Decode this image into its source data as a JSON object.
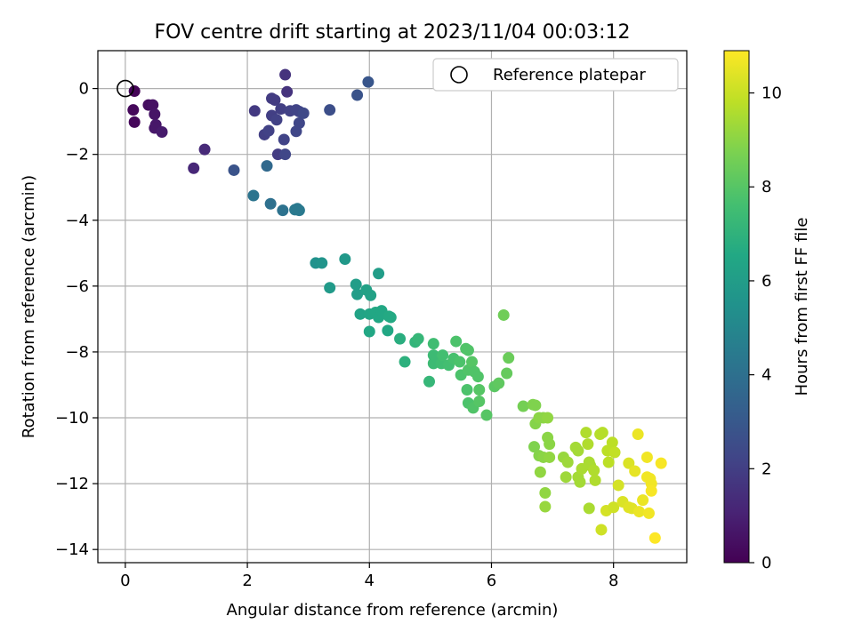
{
  "chart_data": {
    "type": "scatter",
    "title": "FOV centre drift starting at 2023/11/04 00:03:12",
    "xlabel": "Angular distance from reference (arcmin)",
    "ylabel": "Rotation from reference (arcmin)",
    "xlim": [
      -0.45,
      9.2
    ],
    "ylim": [
      -14.4,
      1.15
    ],
    "xticks": [
      0,
      2,
      4,
      6,
      8
    ],
    "yticks": [
      0,
      -2,
      -4,
      -6,
      -8,
      -10,
      -12,
      -14
    ],
    "xtick_labels": [
      "0",
      "2",
      "4",
      "6",
      "8"
    ],
    "ytick_labels": [
      "0",
      "−2",
      "−4",
      "−6",
      "−8",
      "−10",
      "−12",
      "−14"
    ],
    "grid": true,
    "legend": {
      "label": "Reference platepar",
      "position": "top-right"
    },
    "reference": {
      "x": 0,
      "y": 0
    },
    "colorbar": {
      "label": "Hours from first FF file",
      "min": 0,
      "max": 10.9,
      "ticks": [
        0,
        2,
        4,
        6,
        8,
        10
      ],
      "tick_labels": [
        "0",
        "2",
        "4",
        "6",
        "8",
        "10"
      ],
      "colormap": "viridis"
    },
    "points": [
      [
        0.15,
        -0.08,
        0.1
      ],
      [
        0.13,
        -0.65,
        0.2
      ],
      [
        0.15,
        -1.02,
        0.2
      ],
      [
        0.38,
        -0.5,
        0.4
      ],
      [
        0.45,
        -0.5,
        0.5
      ],
      [
        0.48,
        -0.78,
        0.6
      ],
      [
        0.5,
        -1.1,
        0.7
      ],
      [
        0.48,
        -1.2,
        0.7
      ],
      [
        0.6,
        -1.32,
        0.8
      ],
      [
        1.12,
        -2.42,
        1.2
      ],
      [
        1.3,
        -1.85,
        1.3
      ],
      [
        1.78,
        -2.48,
        2.8
      ],
      [
        2.12,
        -0.68,
        1.8
      ],
      [
        2.28,
        -1.4,
        2.0
      ],
      [
        2.35,
        -1.28,
        2.1
      ],
      [
        2.4,
        -0.3,
        1.9
      ],
      [
        2.45,
        -0.35,
        1.9
      ],
      [
        2.4,
        -0.82,
        2.0
      ],
      [
        2.48,
        -0.95,
        2.1
      ],
      [
        2.5,
        -2.0,
        1.9
      ],
      [
        2.55,
        -0.62,
        2.0
      ],
      [
        2.6,
        -1.55,
        2.2
      ],
      [
        2.62,
        -2.0,
        2.3
      ],
      [
        2.62,
        0.42,
        1.6
      ],
      [
        2.65,
        -0.1,
        1.6
      ],
      [
        2.7,
        -0.68,
        2.1
      ],
      [
        2.8,
        -0.65,
        2.2
      ],
      [
        2.85,
        -0.7,
        2.2
      ],
      [
        2.85,
        -1.05,
        2.3
      ],
      [
        2.8,
        -1.3,
        2.3
      ],
      [
        2.92,
        -0.75,
        2.4
      ],
      [
        3.35,
        -0.65,
        2.6
      ],
      [
        3.8,
        -0.2,
        2.8
      ],
      [
        3.98,
        0.2,
        2.9
      ],
      [
        2.32,
        -2.35,
        3.7
      ],
      [
        2.1,
        -3.25,
        4.2
      ],
      [
        2.38,
        -3.5,
        4.0
      ],
      [
        2.58,
        -3.7,
        4.1
      ],
      [
        2.78,
        -3.68,
        4.4
      ],
      [
        2.82,
        -3.65,
        4.4
      ],
      [
        2.85,
        -3.7,
        4.4
      ],
      [
        3.12,
        -5.3,
        5.5
      ],
      [
        3.22,
        -5.3,
        5.6
      ],
      [
        3.6,
        -5.18,
        5.8
      ],
      [
        3.35,
        -6.05,
        5.9
      ],
      [
        3.78,
        -5.95,
        6.0
      ],
      [
        3.8,
        -6.25,
        6.0
      ],
      [
        3.95,
        -6.12,
        6.2
      ],
      [
        4.02,
        -6.28,
        6.2
      ],
      [
        3.85,
        -6.85,
        6.3
      ],
      [
        4.0,
        -6.85,
        6.4
      ],
      [
        4.1,
        -6.8,
        6.5
      ],
      [
        4.15,
        -6.95,
        6.5
      ],
      [
        4.2,
        -6.75,
        6.5
      ],
      [
        4.32,
        -6.92,
        6.6
      ],
      [
        4.35,
        -6.95,
        6.6
      ],
      [
        4.15,
        -5.62,
        6.0
      ],
      [
        4.0,
        -7.38,
        6.5
      ],
      [
        4.3,
        -7.35,
        6.5
      ],
      [
        4.5,
        -7.6,
        6.8
      ],
      [
        4.58,
        -8.3,
        6.9
      ],
      [
        4.75,
        -7.7,
        7.1
      ],
      [
        4.8,
        -7.6,
        7.2
      ],
      [
        4.98,
        -8.9,
        7.2
      ],
      [
        5.05,
        -7.75,
        7.5
      ],
      [
        5.05,
        -8.1,
        7.4
      ],
      [
        5.05,
        -8.35,
        7.4
      ],
      [
        5.12,
        -8.2,
        7.4
      ],
      [
        5.18,
        -8.35,
        7.5
      ],
      [
        5.2,
        -8.1,
        7.6
      ],
      [
        5.3,
        -8.4,
        7.6
      ],
      [
        5.38,
        -8.2,
        7.7
      ],
      [
        5.42,
        -7.68,
        7.8
      ],
      [
        5.48,
        -8.3,
        7.8
      ],
      [
        5.5,
        -8.7,
        7.8
      ],
      [
        5.58,
        -7.9,
        7.9
      ],
      [
        5.62,
        -7.95,
        7.9
      ],
      [
        5.62,
        -8.55,
        7.9
      ],
      [
        5.68,
        -8.3,
        8.0
      ],
      [
        5.72,
        -8.6,
        7.9
      ],
      [
        5.6,
        -9.15,
        7.8
      ],
      [
        5.62,
        -9.55,
        7.8
      ],
      [
        5.7,
        -9.7,
        7.9
      ],
      [
        5.78,
        -8.75,
        7.9
      ],
      [
        5.8,
        -9.15,
        8.0
      ],
      [
        5.8,
        -9.5,
        8.0
      ],
      [
        5.92,
        -9.92,
        8.0
      ],
      [
        6.05,
        -9.05,
        8.1
      ],
      [
        6.12,
        -8.95,
        8.2
      ],
      [
        6.2,
        -6.88,
        8.5
      ],
      [
        6.25,
        -8.65,
        8.3
      ],
      [
        6.28,
        -8.18,
        8.4
      ],
      [
        6.52,
        -9.65,
        8.6
      ],
      [
        6.68,
        -9.6,
        8.8
      ],
      [
        6.72,
        -9.62,
        8.8
      ],
      [
        6.7,
        -10.88,
        8.8
      ],
      [
        6.72,
        -10.18,
        8.9
      ],
      [
        6.78,
        -10.0,
        9.0
      ],
      [
        6.85,
        -10.0,
        9.0
      ],
      [
        6.92,
        -10.0,
        9.1
      ],
      [
        6.78,
        -11.15,
        8.9
      ],
      [
        6.85,
        -11.2,
        9.0
      ],
      [
        6.8,
        -11.65,
        9.1
      ],
      [
        6.92,
        -10.6,
        9.0
      ],
      [
        6.95,
        -10.8,
        9.0
      ],
      [
        6.95,
        -11.2,
        9.1
      ],
      [
        6.88,
        -12.28,
        9.1
      ],
      [
        6.88,
        -12.7,
        9.2
      ],
      [
        7.18,
        -11.2,
        9.2
      ],
      [
        7.25,
        -11.35,
        9.3
      ],
      [
        7.22,
        -11.8,
        9.3
      ],
      [
        7.38,
        -10.9,
        9.4
      ],
      [
        7.42,
        -11.0,
        9.4
      ],
      [
        7.42,
        -11.8,
        9.4
      ],
      [
        7.45,
        -11.95,
        9.4
      ],
      [
        7.48,
        -11.55,
        9.5
      ],
      [
        7.55,
        -10.45,
        9.6
      ],
      [
        7.58,
        -10.8,
        9.6
      ],
      [
        7.6,
        -11.35,
        9.5
      ],
      [
        7.62,
        -11.45,
        9.5
      ],
      [
        7.68,
        -11.6,
        9.6
      ],
      [
        7.7,
        -11.9,
        9.6
      ],
      [
        7.6,
        -12.75,
        9.5
      ],
      [
        7.78,
        -10.5,
        9.7
      ],
      [
        7.82,
        -10.45,
        9.7
      ],
      [
        7.9,
        -11.0,
        9.8
      ],
      [
        7.92,
        -11.35,
        9.8
      ],
      [
        7.98,
        -10.75,
        9.8
      ],
      [
        8.02,
        -11.05,
        9.9
      ],
      [
        7.8,
        -13.4,
        10.1
      ],
      [
        7.88,
        -12.82,
        10.2
      ],
      [
        8.0,
        -12.72,
        10.1
      ],
      [
        8.08,
        -12.05,
        10.2
      ],
      [
        8.15,
        -12.55,
        10.3
      ],
      [
        8.25,
        -11.38,
        10.3
      ],
      [
        8.25,
        -12.72,
        10.4
      ],
      [
        8.3,
        -12.75,
        10.4
      ],
      [
        8.35,
        -11.62,
        10.5
      ],
      [
        8.4,
        -10.5,
        10.6
      ],
      [
        8.42,
        -12.85,
        10.6
      ],
      [
        8.48,
        -12.5,
        10.6
      ],
      [
        8.55,
        -11.2,
        10.7
      ],
      [
        8.55,
        -11.8,
        10.7
      ],
      [
        8.6,
        -11.85,
        10.7
      ],
      [
        8.62,
        -12.0,
        10.7
      ],
      [
        8.58,
        -12.9,
        10.7
      ],
      [
        8.62,
        -12.22,
        10.8
      ],
      [
        8.68,
        -13.65,
        10.9
      ],
      [
        8.78,
        -11.38,
        10.8
      ]
    ]
  }
}
